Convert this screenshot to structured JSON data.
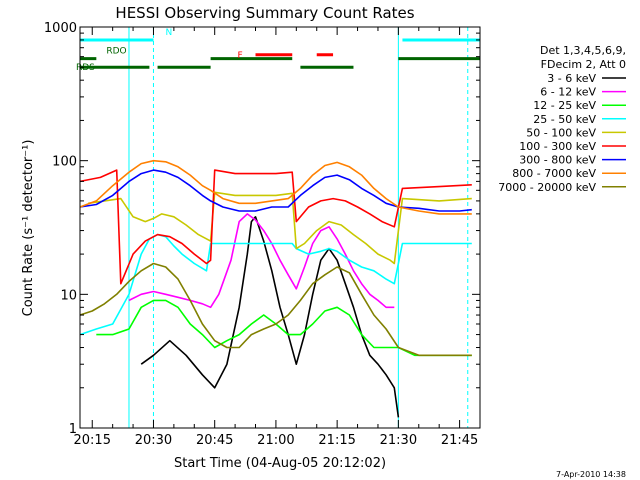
{
  "chart_data": {
    "type": "line",
    "title": "HESSI Observing Summary Count Rates",
    "xlabel": "Start Time (04-Aug-05 20:12:02)",
    "ylabel": "Count Rate (s⁻¹ detector⁻¹)",
    "ylim": [
      1,
      1000
    ],
    "yscale": "log",
    "xlim": [
      "20:12",
      "21:50"
    ],
    "x_ticks": [
      "20:15",
      "20:30",
      "20:45",
      "21:00",
      "21:15",
      "21:30",
      "21:45"
    ],
    "y_ticks": [
      "1",
      "10",
      "100",
      "1000"
    ],
    "vlines": [
      {
        "time": "20:24",
        "style": "solid",
        "color": "#00ffff"
      },
      {
        "time": "20:30",
        "style": "dashed",
        "color": "#00ffff"
      },
      {
        "time": "21:30",
        "style": "solid",
        "color": "#00ffff"
      },
      {
        "time": "21:47",
        "style": "dashed",
        "color": "#00ffff"
      }
    ],
    "flags": [
      {
        "label": "N",
        "color": "#00ffff",
        "level": 800,
        "intervals": [
          [
            "20:12",
            "20:30"
          ],
          [
            "21:31",
            "21:50"
          ]
        ]
      },
      {
        "label": "F",
        "color": "#ff0000",
        "level": 620,
        "intervals": [
          [
            "20:55",
            "21:04"
          ],
          [
            "21:10",
            "21:14"
          ]
        ]
      },
      {
        "label": "RDO",
        "color": "#006400",
        "level": 580,
        "intervals": [
          [
            "20:12",
            "20:16"
          ]
        ]
      },
      {
        "label": "RDS",
        "color": "#006400",
        "level": 500,
        "intervals": [
          [
            "20:12",
            "20:29"
          ],
          [
            "20:31",
            "20:44"
          ],
          [
            "21:06",
            "21:19"
          ]
        ]
      },
      {
        "label": "",
        "color": "#006400",
        "level": 580,
        "intervals": [
          [
            "20:44",
            "21:04"
          ],
          [
            "21:30",
            "21:50"
          ]
        ]
      }
    ],
    "legend_header": [
      "Det 1,3,4,5,6,9,",
      "FDecim 2, Att 0"
    ],
    "legend_position": "right",
    "footer": "7-Apr-2010 14:38",
    "series": [
      {
        "name": "3 - 6 keV",
        "color": "#000000",
        "points": [
          [
            "20:27",
            3
          ],
          [
            "20:30",
            3.5
          ],
          [
            "20:34",
            4.5
          ],
          [
            "20:38",
            3.5
          ],
          [
            "20:42",
            2.5
          ],
          [
            "20:45",
            2
          ],
          [
            "20:48",
            3
          ],
          [
            "20:51",
            8
          ],
          [
            "20:53",
            20
          ],
          [
            "20:54",
            35
          ],
          [
            "20:55",
            38
          ],
          [
            "20:57",
            25
          ],
          [
            "20:59",
            15
          ],
          [
            "21:01",
            8
          ],
          [
            "21:03",
            5
          ],
          [
            "21:05",
            3
          ],
          [
            "21:07",
            5
          ],
          [
            "21:09",
            10
          ],
          [
            "21:11",
            18
          ],
          [
            "21:13",
            22
          ],
          [
            "21:15",
            18
          ],
          [
            "21:17",
            12
          ],
          [
            "21:19",
            8
          ],
          [
            "21:21",
            5
          ],
          [
            "21:23",
            3.5
          ],
          [
            "21:25",
            3
          ],
          [
            "21:27",
            2.5
          ],
          [
            "21:29",
            2
          ],
          [
            "21:30",
            1.2
          ]
        ]
      },
      {
        "name": "6 - 12 keV",
        "color": "#ff00ff",
        "points": [
          [
            "20:24",
            9
          ],
          [
            "20:27",
            10
          ],
          [
            "20:30",
            10.5
          ],
          [
            "20:33",
            10
          ],
          [
            "20:36",
            9.5
          ],
          [
            "20:39",
            9
          ],
          [
            "20:42",
            8.5
          ],
          [
            "20:44",
            8
          ],
          [
            "20:46",
            10
          ],
          [
            "20:49",
            18
          ],
          [
            "20:51",
            35
          ],
          [
            "20:53",
            40
          ],
          [
            "20:55",
            36
          ],
          [
            "20:57",
            30
          ],
          [
            "20:59",
            24
          ],
          [
            "21:01",
            18
          ],
          [
            "21:03",
            14
          ],
          [
            "21:05",
            11
          ],
          [
            "21:07",
            16
          ],
          [
            "21:09",
            24
          ],
          [
            "21:11",
            30
          ],
          [
            "21:13",
            32
          ],
          [
            "21:15",
            26
          ],
          [
            "21:17",
            20
          ],
          [
            "21:19",
            15
          ],
          [
            "21:21",
            12
          ],
          [
            "21:23",
            10
          ],
          [
            "21:25",
            9
          ],
          [
            "21:27",
            8
          ],
          [
            "21:29",
            8
          ]
        ]
      },
      {
        "name": "12 - 25 keV",
        "color": "#00ff00",
        "points": [
          [
            "20:16",
            5
          ],
          [
            "20:20",
            5
          ],
          [
            "20:24",
            5.5
          ],
          [
            "20:27",
            8
          ],
          [
            "20:30",
            9
          ],
          [
            "20:33",
            9
          ],
          [
            "20:36",
            8
          ],
          [
            "20:39",
            6
          ],
          [
            "20:42",
            5
          ],
          [
            "20:45",
            4
          ],
          [
            "20:48",
            4.5
          ],
          [
            "20:51",
            5
          ],
          [
            "20:54",
            6
          ],
          [
            "20:57",
            7
          ],
          [
            "21:00",
            6
          ],
          [
            "21:03",
            5
          ],
          [
            "21:06",
            5
          ],
          [
            "21:09",
            6
          ],
          [
            "21:12",
            7.5
          ],
          [
            "21:15",
            8
          ],
          [
            "21:18",
            7
          ],
          [
            "21:21",
            5
          ],
          [
            "21:24",
            4
          ],
          [
            "21:27",
            4
          ],
          [
            "21:30",
            4
          ],
          [
            "21:34",
            3.5
          ],
          [
            "21:38",
            3.5
          ],
          [
            "21:42",
            3.5
          ],
          [
            "21:46",
            3.5
          ],
          [
            "21:48",
            3.5
          ]
        ]
      },
      {
        "name": "25 - 50 keV",
        "color": "#00ffff",
        "points": [
          [
            "20:12",
            5
          ],
          [
            "20:16",
            5.5
          ],
          [
            "20:20",
            6
          ],
          [
            "20:24",
            10
          ],
          [
            "20:27",
            20
          ],
          [
            "20:29",
            26
          ],
          [
            "20:31",
            28
          ],
          [
            "20:33",
            27
          ],
          [
            "20:35",
            23
          ],
          [
            "20:37",
            20
          ],
          [
            "20:40",
            17
          ],
          [
            "20:43",
            15
          ],
          [
            "20:44",
            24
          ],
          [
            "20:48",
            24
          ],
          [
            "20:52",
            24
          ],
          [
            "20:56",
            24
          ],
          [
            "21:00",
            24
          ],
          [
            "21:04",
            24
          ],
          [
            "21:05",
            22
          ],
          [
            "21:08",
            20
          ],
          [
            "21:11",
            21
          ],
          [
            "21:13",
            22
          ],
          [
            "21:15",
            21
          ],
          [
            "21:18",
            18
          ],
          [
            "21:21",
            16
          ],
          [
            "21:24",
            15
          ],
          [
            "21:27",
            13
          ],
          [
            "21:29",
            12
          ],
          [
            "21:31",
            24
          ],
          [
            "21:48",
            24
          ]
        ]
      },
      {
        "name": "50 - 100 keV",
        "color": "#c8c800",
        "points": [
          [
            "20:14",
            48
          ],
          [
            "20:18",
            50
          ],
          [
            "20:22",
            52
          ],
          [
            "20:25",
            38
          ],
          [
            "20:28",
            35
          ],
          [
            "20:30",
            37
          ],
          [
            "20:32",
            40
          ],
          [
            "20:35",
            38
          ],
          [
            "20:38",
            33
          ],
          [
            "20:41",
            28
          ],
          [
            "20:44",
            25
          ],
          [
            "20:45",
            58
          ],
          [
            "20:50",
            55
          ],
          [
            "20:55",
            55
          ],
          [
            "21:00",
            55
          ],
          [
            "21:04",
            57
          ],
          [
            "21:05",
            22
          ],
          [
            "21:07",
            24
          ],
          [
            "21:10",
            30
          ],
          [
            "21:13",
            35
          ],
          [
            "21:16",
            33
          ],
          [
            "21:19",
            28
          ],
          [
            "21:22",
            24
          ],
          [
            "21:25",
            20
          ],
          [
            "21:28",
            18
          ],
          [
            "21:29",
            17
          ],
          [
            "21:31",
            52
          ],
          [
            "21:40",
            50
          ],
          [
            "21:48",
            52
          ]
        ]
      },
      {
        "name": "100 - 300 keV",
        "color": "#ff0000",
        "points": [
          [
            "20:12",
            70
          ],
          [
            "20:17",
            75
          ],
          [
            "20:21",
            85
          ],
          [
            "20:22",
            12
          ],
          [
            "20:25",
            20
          ],
          [
            "20:28",
            25
          ],
          [
            "20:31",
            28
          ],
          [
            "20:34",
            27
          ],
          [
            "20:37",
            24
          ],
          [
            "20:40",
            20
          ],
          [
            "20:43",
            17
          ],
          [
            "20:44",
            18
          ],
          [
            "20:45",
            85
          ],
          [
            "20:50",
            80
          ],
          [
            "20:55",
            80
          ],
          [
            "21:00",
            80
          ],
          [
            "21:04",
            82
          ],
          [
            "21:05",
            35
          ],
          [
            "21:08",
            45
          ],
          [
            "21:11",
            50
          ],
          [
            "21:14",
            52
          ],
          [
            "21:17",
            50
          ],
          [
            "21:20",
            45
          ],
          [
            "21:23",
            40
          ],
          [
            "21:26",
            35
          ],
          [
            "21:29",
            32
          ],
          [
            "21:31",
            62
          ],
          [
            "21:40",
            64
          ],
          [
            "21:48",
            66
          ]
        ]
      },
      {
        "name": "300 - 800 keV",
        "color": "#0000ff",
        "points": [
          [
            "20:12",
            45
          ],
          [
            "20:16",
            47
          ],
          [
            "20:20",
            55
          ],
          [
            "20:24",
            70
          ],
          [
            "20:27",
            80
          ],
          [
            "20:30",
            85
          ],
          [
            "20:33",
            82
          ],
          [
            "20:36",
            75
          ],
          [
            "20:39",
            65
          ],
          [
            "20:42",
            55
          ],
          [
            "20:44",
            50
          ],
          [
            "20:47",
            45
          ],
          [
            "20:51",
            42
          ],
          [
            "20:55",
            42
          ],
          [
            "20:59",
            45
          ],
          [
            "21:03",
            45
          ],
          [
            "21:06",
            55
          ],
          [
            "21:09",
            65
          ],
          [
            "21:12",
            75
          ],
          [
            "21:15",
            78
          ],
          [
            "21:18",
            72
          ],
          [
            "21:21",
            62
          ],
          [
            "21:24",
            55
          ],
          [
            "21:27",
            48
          ],
          [
            "21:30",
            45
          ],
          [
            "21:35",
            44
          ],
          [
            "21:40",
            42
          ],
          [
            "21:45",
            42
          ],
          [
            "21:48",
            43
          ]
        ]
      },
      {
        "name": "800 - 7000 keV",
        "color": "#ff8000",
        "points": [
          [
            "20:12",
            45
          ],
          [
            "20:16",
            50
          ],
          [
            "20:20",
            65
          ],
          [
            "20:24",
            82
          ],
          [
            "20:27",
            95
          ],
          [
            "20:30",
            100
          ],
          [
            "20:33",
            98
          ],
          [
            "20:36",
            90
          ],
          [
            "20:39",
            78
          ],
          [
            "20:42",
            65
          ],
          [
            "20:44",
            60
          ],
          [
            "20:47",
            52
          ],
          [
            "20:51",
            48
          ],
          [
            "20:55",
            48
          ],
          [
            "20:59",
            50
          ],
          [
            "21:03",
            52
          ],
          [
            "21:06",
            62
          ],
          [
            "21:09",
            78
          ],
          [
            "21:12",
            92
          ],
          [
            "21:15",
            97
          ],
          [
            "21:18",
            90
          ],
          [
            "21:21",
            78
          ],
          [
            "21:24",
            62
          ],
          [
            "21:27",
            52
          ],
          [
            "21:30",
            45
          ],
          [
            "21:35",
            42
          ],
          [
            "21:40",
            40
          ],
          [
            "21:45",
            40
          ],
          [
            "21:48",
            40
          ]
        ]
      },
      {
        "name": "7000 - 20000 keV",
        "color": "#808000",
        "points": [
          [
            "20:12",
            7
          ],
          [
            "20:15",
            7.5
          ],
          [
            "20:18",
            8.5
          ],
          [
            "20:21",
            10
          ],
          [
            "20:24",
            12.5
          ],
          [
            "20:27",
            15
          ],
          [
            "20:30",
            17
          ],
          [
            "20:33",
            16
          ],
          [
            "20:36",
            13
          ],
          [
            "20:39",
            9
          ],
          [
            "20:42",
            6
          ],
          [
            "20:45",
            4.5
          ],
          [
            "20:48",
            4
          ],
          [
            "20:51",
            4
          ],
          [
            "20:54",
            5
          ],
          [
            "20:57",
            5.5
          ],
          [
            "21:00",
            6
          ],
          [
            "21:03",
            7
          ],
          [
            "21:06",
            9
          ],
          [
            "21:09",
            12
          ],
          [
            "21:12",
            14
          ],
          [
            "21:15",
            16
          ],
          [
            "21:18",
            14.5
          ],
          [
            "21:21",
            10
          ],
          [
            "21:24",
            7
          ],
          [
            "21:27",
            5.5
          ],
          [
            "21:30",
            4
          ],
          [
            "21:35",
            3.5
          ],
          [
            "21:40",
            3.5
          ],
          [
            "21:48",
            3.5
          ]
        ]
      }
    ]
  }
}
